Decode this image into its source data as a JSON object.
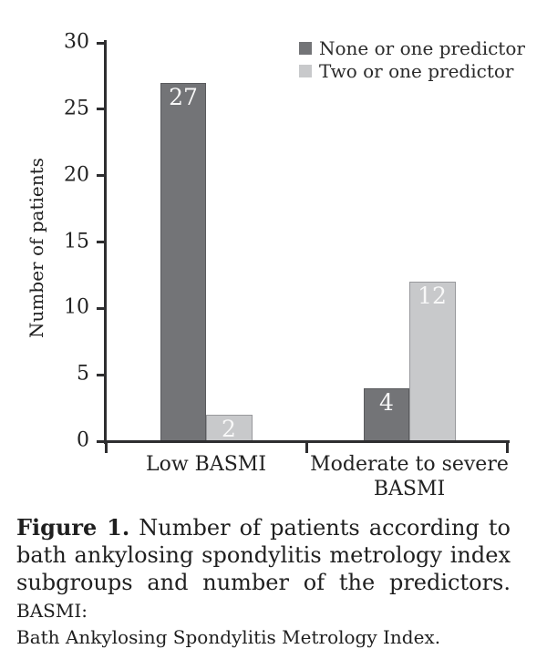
{
  "chart_data": {
    "type": "bar",
    "title": "",
    "xlabel": "",
    "ylabel": "Number of patients",
    "ylim": [
      0,
      30
    ],
    "yticks": [
      0,
      5,
      10,
      15,
      20,
      25,
      30
    ],
    "grid": false,
    "legend_position": "top-right",
    "categories": [
      "Low BASMI",
      "Moderate to severe BASMI"
    ],
    "series": [
      {
        "name": "None or one predictor",
        "values": [
          27,
          4
        ],
        "color": "#737477",
        "border": "#5a5b5e"
      },
      {
        "name": "Two or one predictor",
        "values": [
          2,
          12
        ],
        "color": "#c8c9cb",
        "border": "#98999c"
      }
    ]
  },
  "caption": {
    "label": "Figure 1.",
    "line1_rest": "Number of patients according to",
    "line2": "bath ankylosing spondylitis metrology index",
    "line3_main": "subgroups and number of the predictors.",
    "line3_acronym": "BASMI:",
    "line4": "Bath Ankylosing Spondylitis Metrology Index."
  },
  "colors": {
    "axis": "#2e2e30",
    "text": "#222222",
    "bar_value_text": "#f8f8f8",
    "background": "#ffffff"
  }
}
